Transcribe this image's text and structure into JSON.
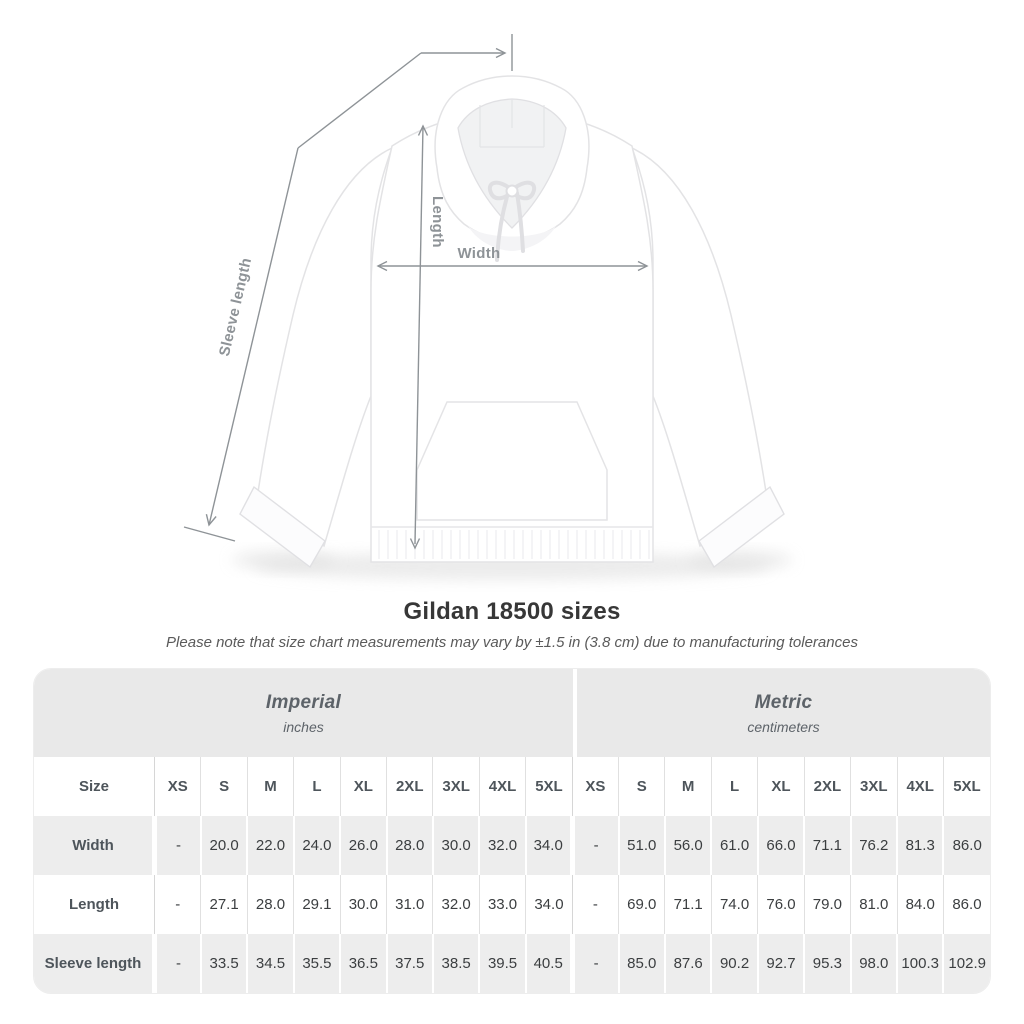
{
  "diagram": {
    "sleeve_label": "Sleeve length",
    "length_label": "Length",
    "width_label": "Width"
  },
  "heading": {
    "title": "Gildan 18500 sizes",
    "note": "Please note that size chart measurements may vary by ±1.5 in (3.8 cm) due to manufacturing tolerances"
  },
  "table": {
    "size_label": "Size",
    "unit_groups": [
      {
        "name": "Imperial",
        "unit": "inches"
      },
      {
        "name": "Metric",
        "unit": "centimeters"
      }
    ],
    "sizes": [
      "XS",
      "S",
      "M",
      "L",
      "XL",
      "2XL",
      "3XL",
      "4XL",
      "5XL"
    ],
    "rows": [
      {
        "label": "Width",
        "imperial": [
          "-",
          "20.0",
          "22.0",
          "24.0",
          "26.0",
          "28.0",
          "30.0",
          "32.0",
          "34.0"
        ],
        "metric": [
          "-",
          "51.0",
          "56.0",
          "61.0",
          "66.0",
          "71.1",
          "76.2",
          "81.3",
          "86.0"
        ]
      },
      {
        "label": "Length",
        "imperial": [
          "-",
          "27.1",
          "28.0",
          "29.1",
          "30.0",
          "31.0",
          "32.0",
          "33.0",
          "34.0"
        ],
        "metric": [
          "-",
          "69.0",
          "71.1",
          "74.0",
          "76.0",
          "79.0",
          "81.0",
          "84.0",
          "86.0"
        ]
      },
      {
        "label": "Sleeve length",
        "imperial": [
          "-",
          "33.5",
          "34.5",
          "35.5",
          "36.5",
          "37.5",
          "38.5",
          "39.5",
          "40.5"
        ],
        "metric": [
          "-",
          "85.0",
          "87.6",
          "90.2",
          "92.7",
          "95.3",
          "98.0",
          "100.3",
          "102.9"
        ]
      }
    ]
  },
  "colors": {
    "annotation": "#8e9397",
    "band_bg": "#e9e9e9",
    "stripe_bg": "#ededed",
    "title_text": "#373737",
    "cell_text": "#3b3e40",
    "label_text": "#4e555b"
  }
}
